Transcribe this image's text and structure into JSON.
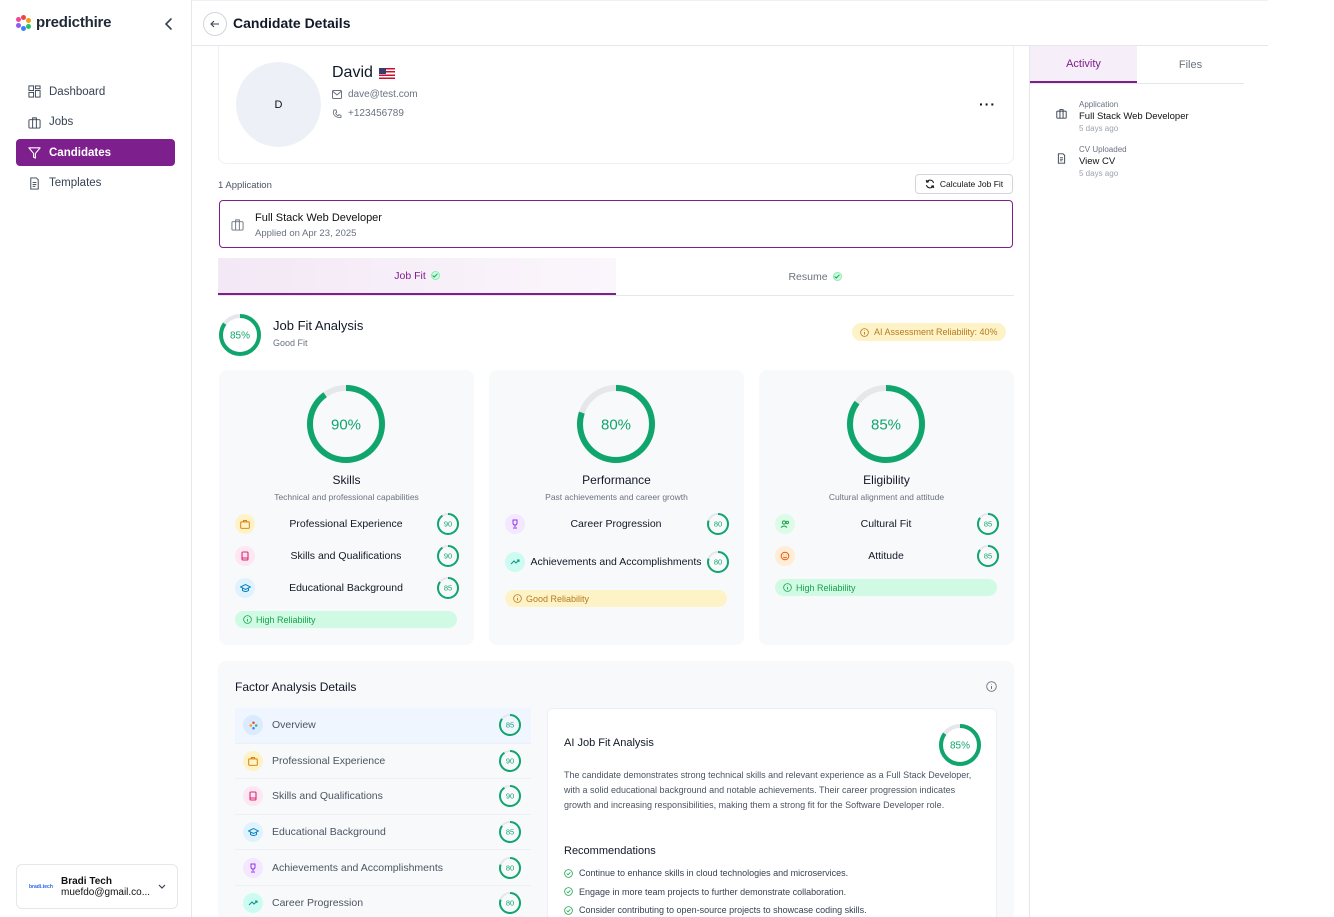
{
  "app": {
    "brand": "predicthire"
  },
  "sidebar": {
    "items": [
      {
        "label": "Dashboard",
        "icon": "dashboard-icon"
      },
      {
        "label": "Jobs",
        "icon": "briefcase-icon"
      },
      {
        "label": "Candidates",
        "icon": "filter-icon"
      },
      {
        "label": "Templates",
        "icon": "document-icon"
      }
    ],
    "user": {
      "org_logo": "bradi.tech",
      "name": "Bradi Tech",
      "email": "muefdo@gmail.co..."
    }
  },
  "header": {
    "title": "Candidate Details"
  },
  "candidate": {
    "initial": "D",
    "name": "David",
    "email": "dave@test.com",
    "phone": "+123456789"
  },
  "applications": {
    "count_label": "1 Application",
    "calc_button": "Calculate Job Fit",
    "job_title": "Full Stack Web Developer",
    "applied_on": "Applied on Apr 23, 2025"
  },
  "tabs": {
    "job_fit": "Job Fit",
    "resume": "Resume"
  },
  "fit": {
    "score": 85,
    "score_label": "85%",
    "title": "Job Fit Analysis",
    "subtitle": "Good Fit",
    "reliability": "AI Assessment Reliability: 40%"
  },
  "cards": [
    {
      "score": 90,
      "score_label": "90%",
      "name": "Skills",
      "desc": "Technical and professional capabilities",
      "factors": [
        {
          "label": "Professional Experience",
          "score": 90,
          "score_label": "90"
        },
        {
          "label": "Skills and Qualifications",
          "score": 90,
          "score_label": "90"
        },
        {
          "label": "Educational Background",
          "score": 85,
          "score_label": "85"
        }
      ],
      "badge": "High Reliability"
    },
    {
      "score": 80,
      "score_label": "80%",
      "name": "Performance",
      "desc": "Past achievements and career growth",
      "factors": [
        {
          "label": "Career Progression",
          "score": 80,
          "score_label": "80"
        },
        {
          "label": "Achievements and Accomplishments",
          "score": 80,
          "score_label": "80"
        }
      ],
      "badge": "Good Reliability"
    },
    {
      "score": 85,
      "score_label": "85%",
      "name": "Eligibility",
      "desc": "Cultural alignment and attitude",
      "factors": [
        {
          "label": "Cultural Fit",
          "score": 85,
          "score_label": "85"
        },
        {
          "label": "Attitude",
          "score": 85,
          "score_label": "85"
        }
      ],
      "badge": "High Reliability"
    }
  ],
  "factor_analysis": {
    "title": "Factor Analysis Details",
    "rows": [
      {
        "label": "Overview",
        "score": 85,
        "score_label": "85"
      },
      {
        "label": "Professional Experience",
        "score": 90,
        "score_label": "90"
      },
      {
        "label": "Skills and Qualifications",
        "score": 90,
        "score_label": "90"
      },
      {
        "label": "Educational Background",
        "score": 85,
        "score_label": "85"
      },
      {
        "label": "Achievements and Accomplishments",
        "score": 80,
        "score_label": "80"
      },
      {
        "label": "Career Progression",
        "score": 80,
        "score_label": "80"
      }
    ],
    "ai_title": "AI Job Fit Analysis",
    "ai_score": 85,
    "ai_score_label": "85%",
    "ai_text": "The candidate demonstrates strong technical skills and relevant experience as a Full Stack Developer, with a solid educational background and notable achievements. Their career progression indicates growth and increasing responsibilities, making them a strong fit for the Software Developer role.",
    "rec_title": "Recommendations",
    "recommendations": [
      "Continue to enhance skills in cloud technologies and microservices.",
      "Engage in more team projects to further demonstrate collaboration.",
      "Consider contributing to open-source projects to showcase coding skills."
    ]
  },
  "right_panel": {
    "tabs": [
      "Activity",
      "Files"
    ],
    "activity": [
      {
        "kind": "Application",
        "title": "Full Stack Web Developer",
        "time": "5 days ago"
      },
      {
        "kind": "CV Uploaded",
        "title": "View CV",
        "time": "5 days ago"
      }
    ]
  },
  "colors": {
    "accent": "#7e1f8e",
    "ring": "#10a56c",
    "ring_track": "#e5e7eb"
  }
}
